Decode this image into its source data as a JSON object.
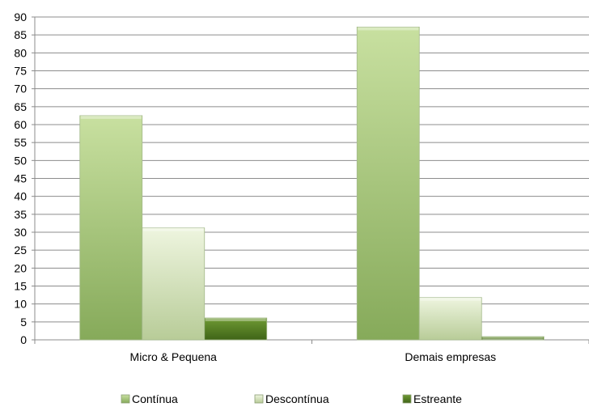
{
  "chart_data": {
    "type": "bar",
    "categories": [
      "Micro & Pequena",
      "Demais empresas"
    ],
    "series": [
      {
        "name": "Contínua",
        "values": [
          62.5,
          87.2
        ],
        "color": "#9bbb59"
      },
      {
        "name": "Descontínua",
        "values": [
          31.2,
          11.8
        ],
        "color": "#c9dfa4"
      },
      {
        "name": "Estreante",
        "values": [
          6.1,
          0.9
        ],
        "color": "#4f7a1f"
      }
    ],
    "ylim": [
      0,
      90
    ],
    "yticks": [
      0,
      5,
      10,
      15,
      20,
      25,
      30,
      35,
      40,
      45,
      50,
      55,
      60,
      65,
      70,
      75,
      80,
      85,
      90
    ],
    "grid": true,
    "legend": "bottom"
  }
}
